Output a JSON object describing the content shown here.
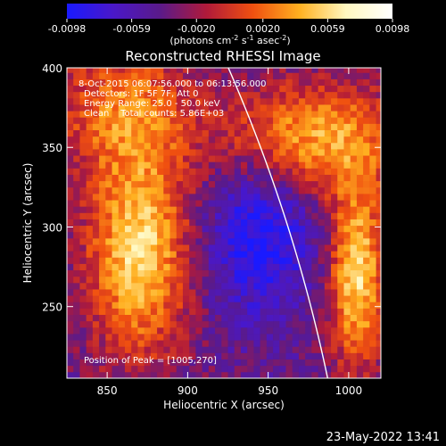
{
  "colorbar": {
    "tick_labels": [
      "-0.0098",
      "-0.0059",
      "-0.0020",
      "0.0020",
      "0.0059",
      "0.0098"
    ],
    "tick_values": [
      -0.0098,
      -0.0059,
      -0.002,
      0.002,
      0.0059,
      0.0098
    ],
    "range": [
      -0.0098,
      0.0098
    ],
    "unit_prefix": "(photons cm",
    "unit_exp1": "-2",
    "unit_mid1": " s",
    "unit_exp2": "-1",
    "unit_mid2": " asec",
    "unit_exp3": "-2",
    "unit_suffix": ")",
    "colors": [
      "#1a1aff",
      "#4a18c8",
      "#5a1a8a",
      "#b01a3a",
      "#f05010",
      "#ffb020",
      "#fff8c0",
      "#ffffff"
    ]
  },
  "chart_data": {
    "type": "heatmap",
    "title": "Reconstructed RHESSI Image",
    "xlabel": "Heliocentric X (arcsec)",
    "ylabel": "Heliocentric Y (arcsec)",
    "xlim": [
      825,
      1020
    ],
    "ylim": [
      205,
      400
    ],
    "x_ticks": [
      850,
      900,
      950,
      1000
    ],
    "y_ticks": [
      250,
      300,
      350,
      400
    ],
    "x_tick_labels": [
      "850",
      "900",
      "950",
      "1000"
    ],
    "y_tick_labels": [
      "250",
      "300",
      "350",
      "400"
    ],
    "limb_color": "#ffffff",
    "annotations": {
      "time_range": "8-Oct-2015 06:07:56.000 to 06:13:56.000",
      "detectors": "Detectors: 1F 5F 7F, Att 0",
      "energy": "Energy Range: 25.0 - 50.0 keV",
      "clean": "Clean    Total counts: 5.86E+03",
      "peak": "Position of Peak = [1005,270]"
    },
    "sources": [
      {
        "x": 870,
        "y": 285,
        "sx": 22,
        "sy": 45,
        "amp": 0.0098
      },
      {
        "x": 860,
        "y": 375,
        "sx": 30,
        "sy": 28,
        "amp": 0.006
      },
      {
        "x": 975,
        "y": 355,
        "sx": 40,
        "sy": 25,
        "amp": 0.0085
      },
      {
        "x": 1005,
        "y": 270,
        "sx": 12,
        "sy": 40,
        "amp": 0.0098
      },
      {
        "x": 945,
        "y": 300,
        "sx": 25,
        "sy": 40,
        "amp": -0.006
      }
    ]
  },
  "footer": {
    "date": "23-May-2022 13:41"
  }
}
